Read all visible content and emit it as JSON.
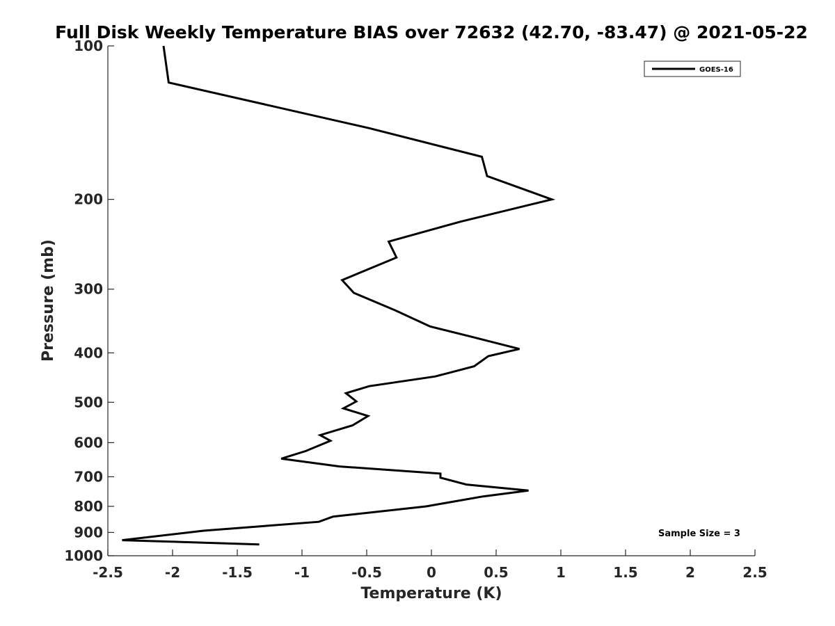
{
  "chart_data": {
    "type": "line",
    "title": "Full Disk Weekly Temperature BIAS over 72632 (42.70, -83.47) @ 2021-05-22",
    "xlabel": "Temperature (K)",
    "ylabel": "Pressure (mb)",
    "xlim": [
      -2.5,
      2.5
    ],
    "ylim": [
      1000,
      100
    ],
    "y_scale": "log",
    "y_reversed": true,
    "x_ticks": [
      -2.5,
      -2,
      -1.5,
      -1,
      -0.5,
      0,
      0.5,
      1,
      1.5,
      2,
      2.5
    ],
    "x_tick_labels": [
      "-2.5",
      "-2",
      "-1.5",
      "-1",
      "-0.5",
      "0",
      "0.5",
      "1",
      "1.5",
      "2",
      "2.5"
    ],
    "y_ticks": [
      100,
      200,
      300,
      400,
      500,
      600,
      700,
      800,
      900,
      1000
    ],
    "y_tick_labels": [
      "100",
      "200",
      "300",
      "400",
      "500",
      "600",
      "700",
      "800",
      "900",
      "1000"
    ],
    "grid": false,
    "legend_position": "top-right",
    "series": [
      {
        "name": "GOES-16",
        "color": "#000000",
        "x": [
          -2.07,
          -2.03,
          -0.48,
          0.39,
          0.43,
          0.93,
          0.23,
          -0.33,
          -0.27,
          -0.69,
          -0.6,
          -0.28,
          -0.01,
          0.31,
          0.68,
          0.44,
          0.33,
          0.03,
          -0.48,
          -0.66,
          -0.58,
          -0.68,
          -0.49,
          -0.61,
          -0.86,
          -0.78,
          -0.97,
          -1.16,
          -0.71,
          0.07,
          0.07,
          0.27,
          0.75,
          0.4,
          -0.04,
          -0.76,
          -0.87,
          -1.76,
          -2.39,
          -1.33
        ],
        "y": [
          100,
          118,
          145,
          165,
          180,
          200,
          221,
          242,
          260,
          288,
          305,
          330,
          355,
          372,
          393,
          406,
          425,
          445,
          465,
          480,
          498,
          514,
          532,
          555,
          580,
          595,
          623,
          645,
          668,
          690,
          703,
          725,
          745,
          765,
          800,
          838,
          858,
          893,
          932,
          950
        ]
      }
    ],
    "annotations": [
      "Sample Size = 3"
    ]
  }
}
